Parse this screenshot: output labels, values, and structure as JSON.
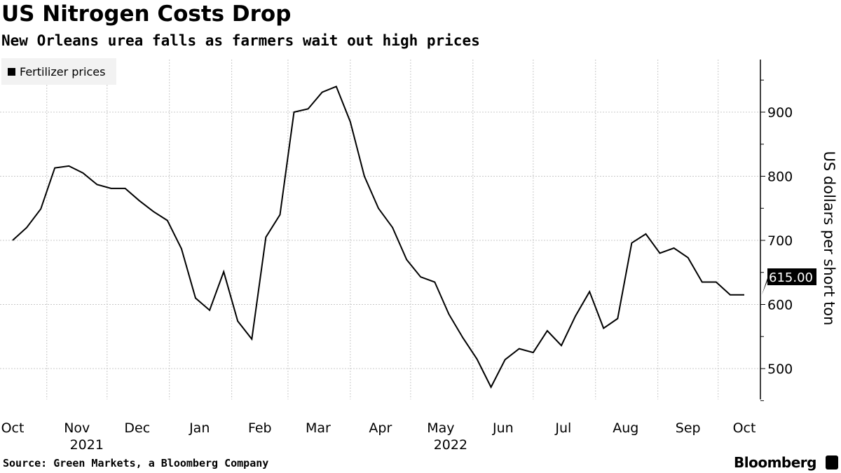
{
  "title": "US Nitrogen Costs Drop",
  "subtitle": "New Orleans urea falls as farmers wait out high prices",
  "source": "Source: Green Markets, a Bloomberg Company",
  "brand": "Bloomberg",
  "chart_data": {
    "type": "line",
    "legend": {
      "label": "Fertilizer prices",
      "placement": "top-left"
    },
    "ylabel": "US dollars per short ton",
    "y_axis_side": "right",
    "ylim": [
      450,
      990
    ],
    "yticks": [
      500,
      600,
      700,
      800,
      900
    ],
    "grid": true,
    "last_value_label": "615.00",
    "xtick_labels": [
      {
        "label": "Oct",
        "date": "2021-10-15"
      },
      {
        "label": "Nov",
        "date": "2021-11-16",
        "year": "2021"
      },
      {
        "label": "Dec",
        "date": "2021-12-16"
      },
      {
        "label": "Jan",
        "date": "2022-01-16"
      },
      {
        "label": "Feb",
        "date": "2022-02-15"
      },
      {
        "label": "Mar",
        "date": "2022-03-16"
      },
      {
        "label": "Apr",
        "date": "2022-04-16"
      },
      {
        "label": "May",
        "date": "2022-05-16",
        "year": "2022"
      },
      {
        "label": "Jun",
        "date": "2022-06-16"
      },
      {
        "label": "Jul",
        "date": "2022-07-16"
      },
      {
        "label": "Aug",
        "date": "2022-08-16"
      },
      {
        "label": "Sep",
        "date": "2022-09-16"
      },
      {
        "label": "Oct",
        "date": "2022-10-14"
      }
    ],
    "series": [
      {
        "name": "Fertilizer prices",
        "color": "#000000",
        "x": [
          "2021-10-15",
          "2021-10-22",
          "2021-10-29",
          "2021-11-05",
          "2021-11-12",
          "2021-11-19",
          "2021-11-26",
          "2021-12-03",
          "2021-12-10",
          "2021-12-17",
          "2021-12-24",
          "2021-12-31",
          "2022-01-07",
          "2022-01-14",
          "2022-01-21",
          "2022-01-28",
          "2022-02-04",
          "2022-02-11",
          "2022-02-18",
          "2022-02-25",
          "2022-03-04",
          "2022-03-11",
          "2022-03-18",
          "2022-03-25",
          "2022-04-01",
          "2022-04-08",
          "2022-04-15",
          "2022-04-22",
          "2022-04-29",
          "2022-05-06",
          "2022-05-13",
          "2022-05-20",
          "2022-05-27",
          "2022-06-03",
          "2022-06-10",
          "2022-06-17",
          "2022-06-24",
          "2022-07-01",
          "2022-07-08",
          "2022-07-15",
          "2022-07-22",
          "2022-07-29",
          "2022-08-05",
          "2022-08-12",
          "2022-08-19",
          "2022-08-26",
          "2022-09-02",
          "2022-09-09",
          "2022-09-16",
          "2022-09-23",
          "2022-09-30",
          "2022-10-07",
          "2022-10-14"
        ],
        "y": [
          700,
          720,
          749,
          813,
          816,
          805,
          787,
          781,
          781,
          762,
          745,
          731,
          687,
          610,
          591,
          651,
          574,
          546,
          705,
          740,
          900,
          905,
          931,
          940,
          885,
          800,
          750,
          720,
          670,
          643,
          635,
          585,
          548,
          515,
          471,
          514,
          531,
          525,
          559,
          536,
          582,
          620,
          563,
          578,
          696,
          710,
          680,
          688,
          673,
          635,
          635,
          615,
          615
        ]
      }
    ]
  }
}
